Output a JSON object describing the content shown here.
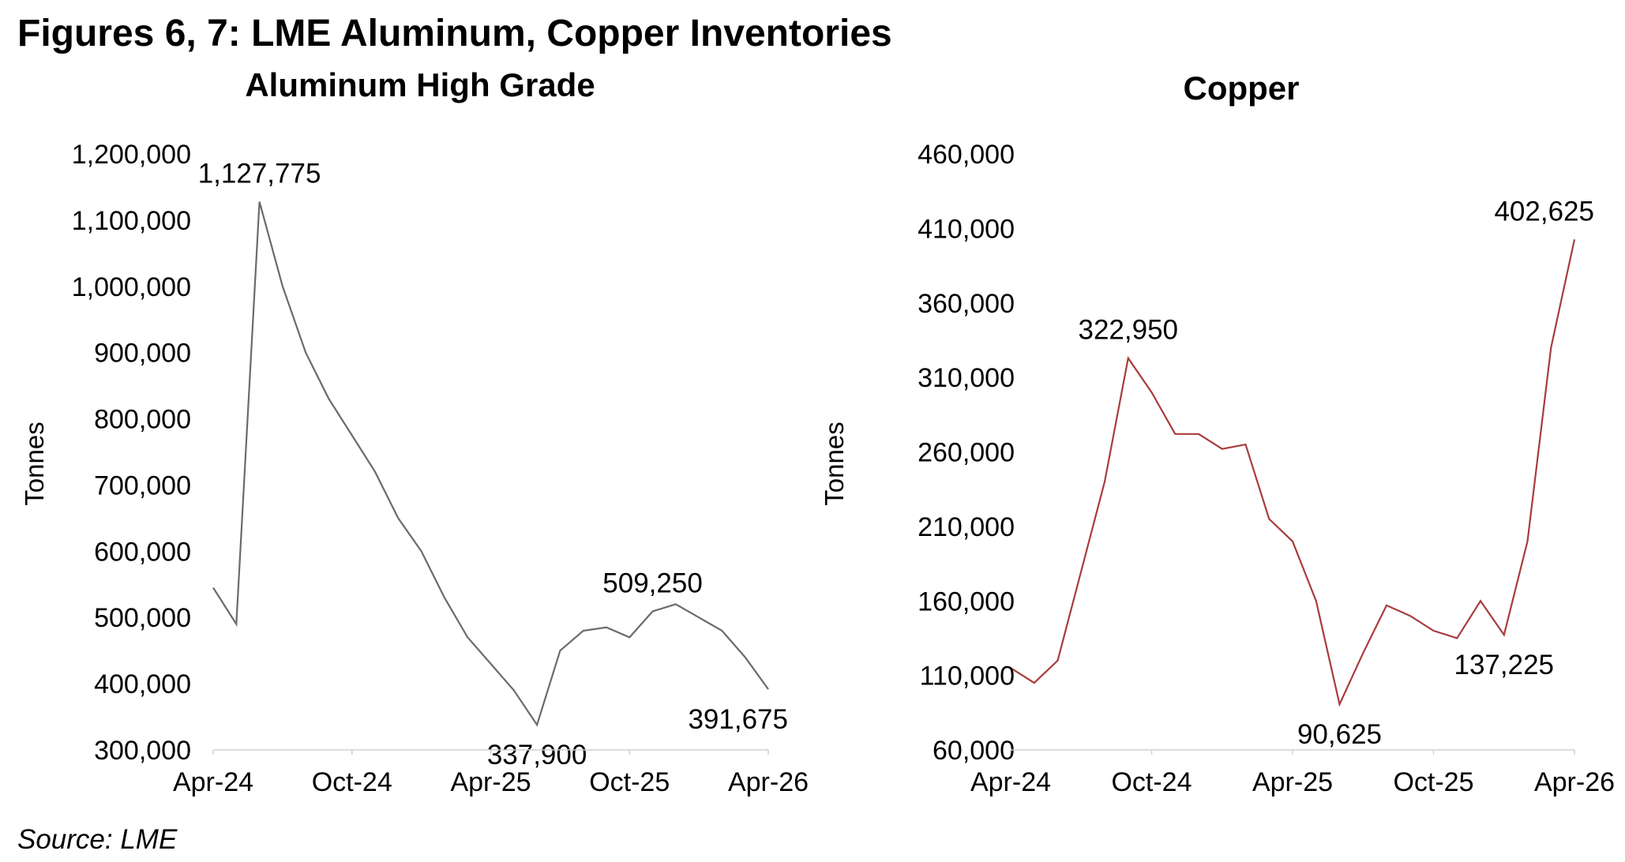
{
  "header": {
    "title": "Figures 6, 7: LME Aluminum, Copper Inventories"
  },
  "footer": {
    "source": "Source: LME"
  },
  "chart_data": [
    {
      "type": "line",
      "title": "Aluminum High Grade",
      "y_label": "Tonnes",
      "x": [
        "2024-04",
        "2024-05",
        "2024-06",
        "2024-07",
        "2024-08",
        "2024-09",
        "2024-10",
        "2024-11",
        "2024-12",
        "2025-01",
        "2025-02",
        "2025-03",
        "2025-04",
        "2025-05",
        "2025-06",
        "2025-07",
        "2025-08",
        "2025-09",
        "2025-10",
        "2025-11",
        "2025-12",
        "2026-01",
        "2026-02",
        "2026-03",
        "2026-04"
      ],
      "series": [
        {
          "name": "Aluminum High Grade",
          "color": "#6b6b6b",
          "values": [
            545000,
            490000,
            1127775,
            1000000,
            900000,
            830000,
            775000,
            720000,
            650000,
            600000,
            530000,
            470000,
            430000,
            390000,
            337900,
            450000,
            480000,
            485000,
            470000,
            509250,
            520000,
            500000,
            480000,
            440000,
            391675
          ],
          "value_labels": [
            null,
            null,
            "1,127,775",
            null,
            null,
            null,
            null,
            null,
            null,
            null,
            null,
            null,
            null,
            null,
            "337,900",
            null,
            null,
            null,
            null,
            "509,250",
            null,
            null,
            null,
            null,
            "391,675"
          ]
        }
      ],
      "ylim": [
        300000,
        1200000
      ],
      "yticks": [
        {
          "value": 300000,
          "label": "300,000"
        },
        {
          "value": 400000,
          "label": "400,000"
        },
        {
          "value": 500000,
          "label": "500,000"
        },
        {
          "value": 600000,
          "label": "600,000"
        },
        {
          "value": 700000,
          "label": "700,000"
        },
        {
          "value": 800000,
          "label": "800,000"
        },
        {
          "value": 900000,
          "label": "900,000"
        },
        {
          "value": 1000000,
          "label": "1,000,000"
        },
        {
          "value": 1100000,
          "label": "1,100,000"
        },
        {
          "value": 1200000,
          "label": "1,200,000"
        }
      ],
      "xticks": [
        {
          "value": "2024-04",
          "label": "Apr-24"
        },
        {
          "value": "2024-10",
          "label": "Oct-24"
        },
        {
          "value": "2025-04",
          "label": "Apr-25"
        },
        {
          "value": "2025-10",
          "label": "Oct-25"
        },
        {
          "value": "2026-04",
          "label": "Apr-26"
        }
      ],
      "grid": false
    },
    {
      "type": "line",
      "title": "Copper",
      "y_label": "Tonnes",
      "x": [
        "2024-04",
        "2024-05",
        "2024-06",
        "2024-07",
        "2024-08",
        "2024-09",
        "2024-10",
        "2024-11",
        "2024-12",
        "2025-01",
        "2025-02",
        "2025-03",
        "2025-04",
        "2025-05",
        "2025-06",
        "2025-07",
        "2025-08",
        "2025-09",
        "2025-10",
        "2025-11",
        "2025-12",
        "2026-01",
        "2026-02",
        "2026-03",
        "2026-04"
      ],
      "series": [
        {
          "name": "Copper",
          "color": "#a83c3c",
          "values": [
            115000,
            105000,
            120000,
            180000,
            240000,
            322950,
            300000,
            272000,
            272000,
            262000,
            265000,
            215000,
            200000,
            160000,
            90625,
            125000,
            157000,
            150000,
            140000,
            135000,
            160000,
            137225,
            200000,
            330000,
            402625
          ],
          "value_labels": [
            null,
            null,
            null,
            null,
            null,
            "322,950",
            null,
            null,
            null,
            null,
            null,
            null,
            null,
            null,
            "90,625",
            null,
            null,
            null,
            null,
            null,
            null,
            "137,225",
            null,
            null,
            "402,625"
          ]
        }
      ],
      "ylim": [
        60000,
        460000
      ],
      "yticks": [
        {
          "value": 60000,
          "label": "60,000"
        },
        {
          "value": 110000,
          "label": "110,000"
        },
        {
          "value": 160000,
          "label": "160,000"
        },
        {
          "value": 210000,
          "label": "210,000"
        },
        {
          "value": 260000,
          "label": "260,000"
        },
        {
          "value": 310000,
          "label": "310,000"
        },
        {
          "value": 360000,
          "label": "360,000"
        },
        {
          "value": 410000,
          "label": "410,000"
        },
        {
          "value": 460000,
          "label": "460,000"
        }
      ],
      "xticks": [
        {
          "value": "2024-04",
          "label": "Apr-24"
        },
        {
          "value": "2024-10",
          "label": "Oct-24"
        },
        {
          "value": "2025-04",
          "label": "Apr-25"
        },
        {
          "value": "2025-10",
          "label": "Oct-25"
        },
        {
          "value": "2026-04",
          "label": "Apr-26"
        }
      ],
      "grid": false
    }
  ]
}
